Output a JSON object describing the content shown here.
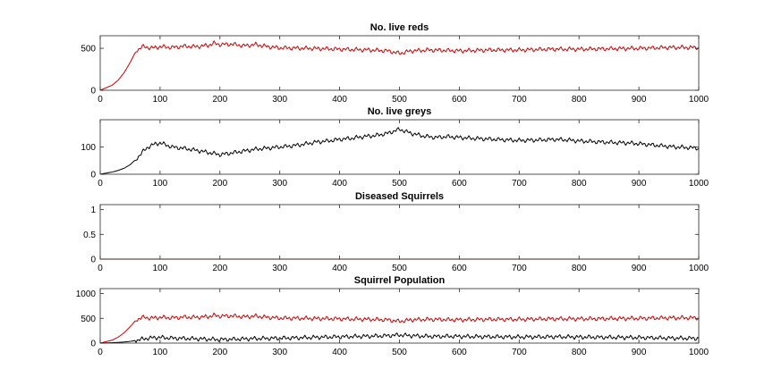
{
  "figure": {
    "background": "#ffffff"
  },
  "chart_data": [
    {
      "type": "line",
      "title": "No. live reds",
      "xlim": [
        0,
        1000
      ],
      "ylim": [
        0,
        650
      ],
      "xticks": [
        0,
        100,
        200,
        300,
        400,
        500,
        600,
        700,
        800,
        900,
        1000
      ],
      "yticks": [
        0,
        500
      ],
      "grid": false,
      "series": [
        {
          "color": "#cc0000",
          "x": [
            0,
            10,
            20,
            30,
            40,
            50,
            60,
            70,
            80,
            90,
            100,
            120,
            140,
            160,
            180,
            190,
            200,
            220,
            240,
            260,
            280,
            300,
            350,
            400,
            450,
            480,
            500,
            520,
            550,
            600,
            650,
            700,
            750,
            800,
            850,
            900,
            950,
            1000
          ],
          "y": [
            0,
            30,
            60,
            120,
            210,
            330,
            470,
            520,
            510,
            505,
            520,
            510,
            525,
            520,
            535,
            560,
            545,
            550,
            530,
            545,
            520,
            505,
            500,
            490,
            480,
            470,
            440,
            470,
            480,
            470,
            480,
            480,
            490,
            490,
            495,
            500,
            510,
            510
          ]
        }
      ]
    },
    {
      "type": "line",
      "title": "No. live greys",
      "xlim": [
        0,
        1000
      ],
      "ylim": [
        0,
        200
      ],
      "xticks": [
        0,
        100,
        200,
        300,
        400,
        500,
        600,
        700,
        800,
        900,
        1000
      ],
      "yticks": [
        0,
        100
      ],
      "grid": false,
      "series": [
        {
          "color": "#000000",
          "x": [
            0,
            10,
            20,
            30,
            40,
            50,
            60,
            70,
            80,
            90,
            100,
            120,
            140,
            160,
            180,
            200,
            220,
            240,
            260,
            280,
            300,
            320,
            340,
            360,
            380,
            400,
            420,
            440,
            460,
            480,
            500,
            520,
            540,
            560,
            580,
            600,
            620,
            640,
            660,
            680,
            700,
            720,
            740,
            760,
            780,
            800,
            820,
            840,
            860,
            880,
            900,
            920,
            940,
            960,
            980,
            1000
          ],
          "y": [
            0,
            4,
            8,
            14,
            22,
            35,
            55,
            80,
            100,
            110,
            115,
            100,
            95,
            88,
            80,
            72,
            78,
            85,
            92,
            96,
            100,
            104,
            110,
            118,
            122,
            128,
            132,
            138,
            142,
            150,
            165,
            150,
            140,
            135,
            138,
            135,
            132,
            130,
            128,
            126,
            124,
            125,
            126,
            128,
            126,
            122,
            120,
            118,
            116,
            115,
            112,
            108,
            104,
            100,
            98,
            96
          ]
        }
      ]
    },
    {
      "type": "line",
      "title": "Diseased Squirrels",
      "xlim": [
        0,
        1000
      ],
      "ylim": [
        0,
        1.1
      ],
      "xticks": [
        0,
        100,
        200,
        300,
        400,
        500,
        600,
        700,
        800,
        900,
        1000
      ],
      "yticks": [
        0,
        0.5,
        1
      ],
      "grid": false,
      "series": [
        {
          "color": "#cc0000",
          "x": [
            0,
            1000
          ],
          "y": [
            0,
            0
          ]
        }
      ]
    },
    {
      "type": "line",
      "title": "Squirrel Population",
      "xlim": [
        0,
        1000
      ],
      "ylim": [
        0,
        1100
      ],
      "xticks": [
        0,
        100,
        200,
        300,
        400,
        500,
        600,
        700,
        800,
        900,
        1000
      ],
      "yticks": [
        0,
        500,
        1000
      ],
      "grid": false,
      "series": [
        {
          "color": "#cc0000",
          "x": [
            0,
            10,
            20,
            30,
            40,
            50,
            60,
            70,
            80,
            90,
            100,
            120,
            140,
            160,
            180,
            190,
            200,
            220,
            240,
            260,
            280,
            300,
            350,
            400,
            450,
            480,
            500,
            520,
            550,
            600,
            650,
            700,
            750,
            800,
            850,
            900,
            950,
            1000
          ],
          "y": [
            0,
            30,
            60,
            120,
            210,
            330,
            470,
            520,
            510,
            505,
            520,
            510,
            525,
            520,
            535,
            560,
            545,
            550,
            530,
            545,
            520,
            505,
            500,
            490,
            480,
            470,
            440,
            470,
            480,
            470,
            480,
            480,
            490,
            490,
            495,
            500,
            510,
            510
          ]
        },
        {
          "color": "#000000",
          "x": [
            0,
            10,
            20,
            30,
            40,
            50,
            60,
            70,
            80,
            90,
            100,
            120,
            140,
            160,
            180,
            200,
            220,
            240,
            260,
            280,
            300,
            320,
            340,
            360,
            380,
            400,
            420,
            440,
            460,
            480,
            500,
            520,
            540,
            560,
            580,
            600,
            620,
            640,
            660,
            680,
            700,
            720,
            740,
            760,
            780,
            800,
            820,
            840,
            860,
            880,
            900,
            920,
            940,
            960,
            980,
            1000
          ],
          "y": [
            0,
            4,
            8,
            14,
            22,
            35,
            55,
            80,
            100,
            110,
            115,
            100,
            95,
            88,
            80,
            72,
            78,
            85,
            92,
            96,
            100,
            104,
            110,
            118,
            122,
            128,
            132,
            138,
            142,
            150,
            165,
            150,
            140,
            135,
            138,
            135,
            132,
            130,
            128,
            126,
            124,
            125,
            126,
            128,
            126,
            122,
            120,
            118,
            116,
            115,
            112,
            108,
            104,
            100,
            98,
            96
          ]
        }
      ]
    }
  ]
}
